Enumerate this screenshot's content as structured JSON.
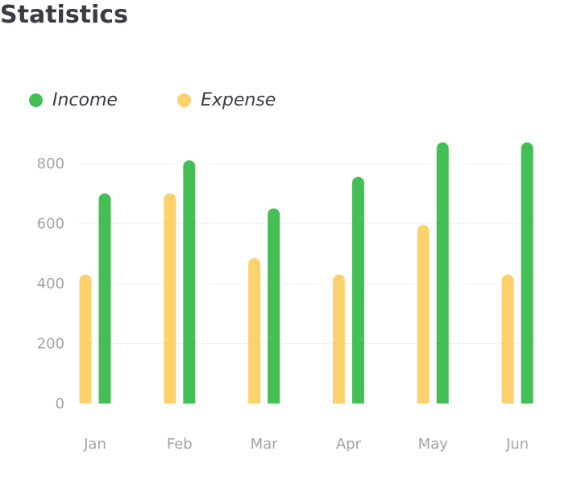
{
  "title": "Statistics",
  "chart_data": {
    "type": "bar",
    "categories": [
      "Jan",
      "Feb",
      "Mar",
      "Apr",
      "May",
      "Jun"
    ],
    "series": [
      {
        "name": "Expense",
        "color": "#fdd16b",
        "values": [
          430,
          700,
          485,
          430,
          595,
          430
        ]
      },
      {
        "name": "Income",
        "color": "#44bf55",
        "values": [
          700,
          810,
          650,
          755,
          870,
          870
        ]
      }
    ],
    "y_ticks": [
      0,
      200,
      400,
      600,
      800
    ],
    "ylim": [
      0,
      880
    ],
    "grid": true,
    "legend_position": "top-left"
  }
}
